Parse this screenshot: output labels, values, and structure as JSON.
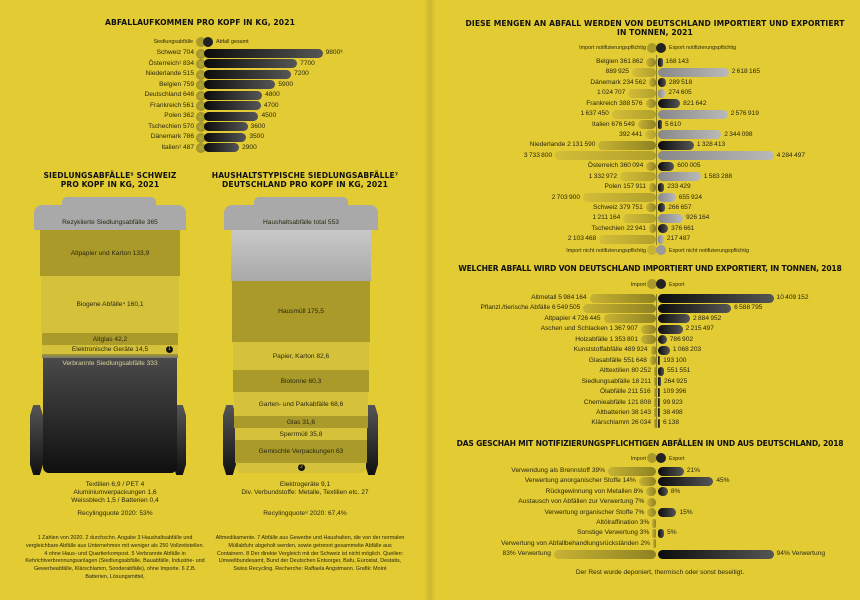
{
  "left": {
    "chart1_title": "ABFALLAUFKOMMEN PRO KOPF IN KG, 2021",
    "bin_ch": {
      "title_line1": "SIEDLUNGSABFÄLLE⁵ SCHWEIZ",
      "title_line2": "PRO KOPF IN KG, 2021",
      "lid": "Rezyklierte Siedlungsabfälle 365",
      "sections": [
        "Altpapier und Karton 133,9",
        "Biogene Abfälle⁴ 160,1",
        "Altglas 42,2",
        "Elektronische Geräte 14,5",
        "Verbrannte Siedlungsabfälle 333"
      ],
      "marker": "1",
      "notes": [
        "Textilien 6,9 / PET 4",
        "Aluminiumverpackungen 1,6",
        "Weissblech 1,5 / Batterien 0,4"
      ],
      "quota": "Recylingquote 2020: 53%"
    },
    "bin_de": {
      "title_line1": "HAUSHALTSTYPISCHE SIEDLUNGSABFÄLLE⁷",
      "title_line2": "DEUTSCHLAND PRO KOPF IN KG, 2021",
      "lid": "Haushaltsabfälle total 553",
      "sections": [
        "Hausmüll 175,5",
        "Papier, Karton 82,6",
        "Biotonne 60,3",
        "Garten- und Parkabfälle 68,6",
        "Glas 31,6",
        "Sperrmüll 35,8",
        "Gemischte Verpackungen 63"
      ],
      "marker": "2",
      "notes": [
        "Elektrogeräte 9,1",
        "Div. Verbundstoffe: Metalle, Textilien etc. 27"
      ],
      "quota": "Recylingquote⁸ 2020: 67,4%"
    },
    "footnote_1": "1 Zahlen von 2020. 2 durchschn. Angabe 3 Haushaltsabfälle und vergleichbare Abfälle aus Unternehmen mit weniger als 250 Vollzeitstellen. 4 ohne Haus- und Quartierkompost. 5 Verbrannte Abfälle in Kehrichtverbrennungsanlagen (Siedlungsabfälle, Bauabfälle, Industrie- und Gewerbeabfälle, Klärschlamm, Sonderabfälle), ohne Importe. 6 Z.B. Batterien, Lösungsmittel,",
    "footnote_2": "Altmedikamente. 7 Abfälle aus Gewerbe und Haushalten, die von der normalen Müllabfuhr abgeholt werden, sowie getrennt gesammelte Abfälle aus Containern. 8 Der direkte Vergleich mit der Schweiz ist nicht möglich. Quellen: Umweltbundesamt, Bund der Deutschen Entsorger, Bafu, Eurostat, Destatis, Swiss Recycling. Recherche: Raffaela Angstmann. Grafik: Moiré"
  },
  "chart_data": [
    {
      "type": "bar",
      "title": "ABFALLAUFKOMMEN PRO KOPF IN KG, 2021",
      "legend": [
        "Siedlungsabfälle",
        "Abfall gesamt"
      ],
      "rows": [
        {
          "label": "Schweiz",
          "siedlung": 704,
          "gesamt": 9800,
          "gesamt_note": "³"
        },
        {
          "label": "Österreich¹",
          "siedlung": 834,
          "gesamt": 7700
        },
        {
          "label": "Niederlande",
          "siedlung": 515,
          "gesamt": 7200
        },
        {
          "label": "Belgien",
          "siedlung": 759,
          "gesamt": 5900
        },
        {
          "label": "Deutschland",
          "siedlung": 646,
          "gesamt": 4800
        },
        {
          "label": "Frankreich",
          "siedlung": 561,
          "gesamt": 4700
        },
        {
          "label": "Polen",
          "siedlung": 362,
          "gesamt": 4500
        },
        {
          "label": "Tschechien",
          "siedlung": 570,
          "gesamt": 3600
        },
        {
          "label": "Dänemark",
          "siedlung": 786,
          "gesamt": 3500
        },
        {
          "label": "Italien¹",
          "siedlung": 487,
          "gesamt": 2900
        }
      ]
    },
    {
      "type": "bar",
      "title": "DIESE MENGEN AN ABFALL WERDEN VON DEUTSCHLAND IMPORTIERT UND  EXPORTIERT",
      "subtitle": "IN TONNEN, 2021",
      "legend_top": [
        "Import notifizierungspflichtig",
        "Export notifizierungspflichtig"
      ],
      "legend_bottom": [
        "Import nicht notifizierungspflichtig",
        "Export  nicht notifizierungspflichtig"
      ],
      "rows": [
        {
          "label": "Belgien",
          "import_notif": 361862,
          "export_notif": 168143,
          "import_non": 889925,
          "export_non": 2618165
        },
        {
          "label": "Dänemark",
          "import_notif": 234562,
          "export_notif": 289518,
          "import_non": 1024707,
          "export_non": 274605
        },
        {
          "label": "Frankreich",
          "import_notif": 388576,
          "export_notif": 821642,
          "import_non": 1637450,
          "export_non": 2576919
        },
        {
          "label": "Italien",
          "import_notif": 676549,
          "export_notif": 5610,
          "import_non": 392441,
          "export_non": 2344098
        },
        {
          "label": "Niederlande",
          "import_notif": 2131590,
          "export_notif": 1328413,
          "import_non": 3733800,
          "export_non": 4284497
        },
        {
          "label": "Österreich",
          "import_notif": 360094,
          "export_notif": 600005,
          "import_non": 1332972,
          "export_non": 1583288
        },
        {
          "label": "Polen",
          "import_notif": 157911,
          "export_notif": 233429,
          "import_non": 2703900,
          "export_non": 655924
        },
        {
          "label": "Schweiz",
          "import_notif": 379751,
          "export_notif": 266657,
          "import_non": 1211164,
          "export_non": 926164
        },
        {
          "label": "Tschechien",
          "import_notif": 22941,
          "export_notif": 376661,
          "import_non": 2103468,
          "export_non": 217487
        }
      ]
    },
    {
      "type": "bar",
      "title": "WELCHER ABFALL WIRD VON DEUTSCHLAND IMPORTIERT UND EXPORTIERT, IN TONNEN, 2018",
      "legend": [
        "Import",
        "Export"
      ],
      "rows": [
        {
          "label": "Altmetall",
          "import": 5984164,
          "export": 10409152
        },
        {
          "label": "Pflanzl./tierische Abfälle",
          "import": 6549505,
          "export": 6588795
        },
        {
          "label": "Altpapier",
          "import": 4726445,
          "export": 2884952
        },
        {
          "label": "Aschen und Schlacken",
          "import": 1367907,
          "export": 2215497
        },
        {
          "label": "Holzabfälle",
          "import": 1353801,
          "export": 786902
        },
        {
          "label": "Kunststoffabfälle",
          "import": 489924,
          "export": 1068203
        },
        {
          "label": "Glasabfälle",
          "import": 551648,
          "export": 193100
        },
        {
          "label": "Alttextilien",
          "import": 80252,
          "export": 551551
        },
        {
          "label": "Siedlungsabfälle",
          "import": 18211,
          "export": 264925
        },
        {
          "label": "Ölabfälle",
          "import": 211516,
          "export": 109396
        },
        {
          "label": "Chemieabfälle",
          "import": 121808,
          "export": 99923
        },
        {
          "label": "Altbatterien",
          "import": 38143,
          "export": 38498
        },
        {
          "label": "Klärschlamm",
          "import": 26034,
          "export": 6138
        }
      ]
    },
    {
      "type": "bar",
      "title": "DAS GESCHAH MIT NOTIFIZIERUNGSPFLICHTIGEN ABFÄLLEN IN UND AUS DEUTSCHLAND, 2018",
      "legend": [
        "Import",
        "Export"
      ],
      "unit": "%",
      "rows": [
        {
          "label": "Verwendung als Brennstoff",
          "import": 39,
          "export": 21
        },
        {
          "label": "Verwertung anorganischer Stoffe",
          "import": 14,
          "export": 45
        },
        {
          "label": "Rückgewinnung von Metallen",
          "import": 8,
          "export": 8
        },
        {
          "label": "Austausch von Abfällen zur Verwertung",
          "import": 7,
          "export": null
        },
        {
          "label": "Verwertung organischer Stoffe",
          "import": 7,
          "export": 15
        },
        {
          "label": "Altölraffination",
          "import": 3,
          "export": null
        },
        {
          "label": "Sonstige Verwertung",
          "import": 3,
          "export": 5
        },
        {
          "label": "Verwertung von Abfallbehandlungsrückständen",
          "import": 2,
          "export": null
        }
      ],
      "total": {
        "label": "Verwertung",
        "import": 83,
        "export": 94
      },
      "footer": "Der Rest wurde deponiert, thermisch oder sonst beseitigt."
    }
  ]
}
